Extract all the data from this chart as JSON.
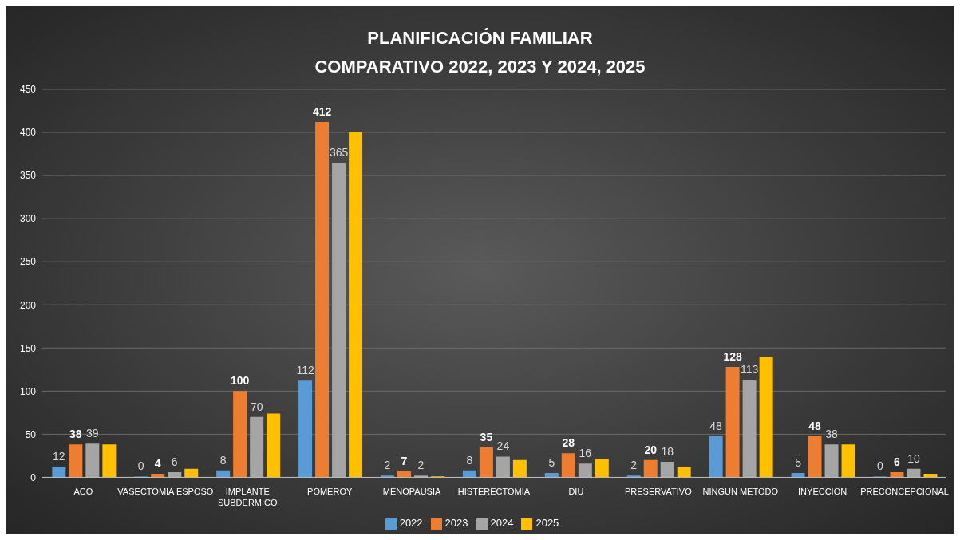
{
  "chart_data": {
    "type": "bar",
    "title": "PLANIFICACIÓN FAMILIAR",
    "subtitle": "COMPARATIVO 2022, 2023 Y 2024, 2025",
    "categories": [
      "ACO",
      "VASECTOMIA ESPOSO",
      "IMPLANTE SUBDERMICO",
      "POMEROY",
      "MENOPAUSIA",
      "HISTERECTOMIA",
      "DIU",
      "PRESERVATIVO",
      "NINGUN METODO",
      "INYECCION",
      "PRECONCEPCIONAL"
    ],
    "series": [
      {
        "name": "2022",
        "color": "#5b9bd5",
        "values": [
          12,
          0,
          8,
          112,
          2,
          8,
          5,
          2,
          48,
          5,
          0
        ],
        "value_labels": [
          "12",
          "0",
          "8",
          "112",
          "2",
          "8",
          "5",
          "2",
          "48",
          "5",
          "0"
        ]
      },
      {
        "name": "2023",
        "color": "#ed7d31",
        "values": [
          38,
          4,
          100,
          412,
          7,
          35,
          28,
          20,
          128,
          48,
          6
        ],
        "value_labels": [
          "38",
          "4",
          "100",
          "412",
          "7",
          "35",
          "28",
          "20",
          "128",
          "48",
          "6"
        ]
      },
      {
        "name": "2024",
        "color": "#a5a5a5",
        "values": [
          39,
          6,
          70,
          365,
          2,
          24,
          16,
          18,
          113,
          38,
          10
        ],
        "value_labels": [
          "39",
          "6",
          "70",
          "365",
          "2",
          "24",
          "16",
          "18",
          "113",
          "38",
          "10"
        ]
      },
      {
        "name": "2025",
        "color": "#ffc000",
        "values": [
          38,
          10,
          74,
          400,
          1,
          20,
          21,
          12,
          140,
          38,
          4
        ]
      }
    ],
    "ylim": [
      0,
      450
    ],
    "yticks": [
      0,
      50,
      100,
      150,
      200,
      250,
      300,
      350,
      400,
      450
    ],
    "grid": "y",
    "legend": "bottom"
  }
}
